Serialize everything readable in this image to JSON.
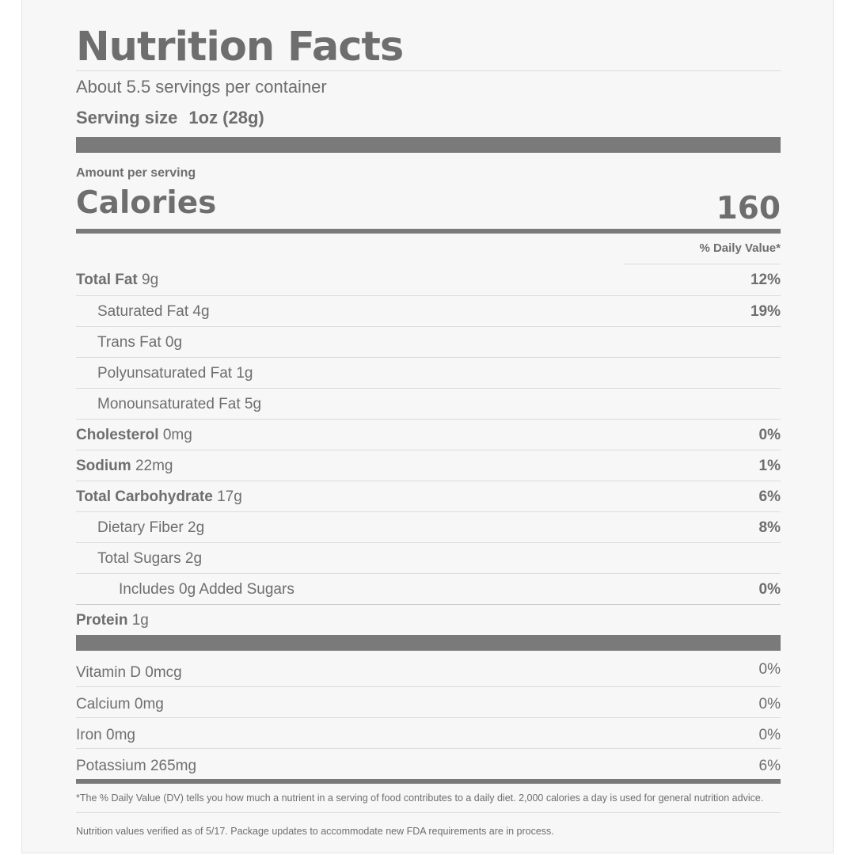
{
  "label": {
    "title": "Nutrition Facts",
    "servings_per_container": "About 5.5 servings per container",
    "serving_size_label": "Serving size",
    "serving_size_value": "1oz (28g)",
    "amount_per_serving": "Amount per serving",
    "calories_label": "Calories",
    "calories_value": "160",
    "daily_value_header": "% Daily Value*"
  },
  "nutrients": [
    {
      "name": "Total Fat",
      "amount": "9g",
      "dv": "12%"
    },
    {
      "name": "Saturated Fat",
      "amount": "4g",
      "dv": "19%"
    },
    {
      "name": "Trans Fat",
      "amount": "0g",
      "dv": ""
    },
    {
      "name": "Polyunsaturated Fat",
      "amount": "1g",
      "dv": ""
    },
    {
      "name": "Monounsaturated Fat",
      "amount": "5g",
      "dv": ""
    },
    {
      "name": "Cholesterol",
      "amount": "0mg",
      "dv": "0%"
    },
    {
      "name": "Sodium",
      "amount": "22mg",
      "dv": "1%"
    },
    {
      "name": "Total Carbohydrate",
      "amount": "17g",
      "dv": "6%"
    },
    {
      "name": "Dietary Fiber",
      "amount": "2g",
      "dv": "8%"
    },
    {
      "name": "Total Sugars",
      "amount": "2g",
      "dv": ""
    },
    {
      "name": "Includes 0g Added Sugars",
      "amount": "",
      "dv": "0%"
    },
    {
      "name": "Protein",
      "amount": "1g",
      "dv": ""
    }
  ],
  "vitamins": [
    {
      "text": "Vitamin D 0mcg",
      "dv": "0%"
    },
    {
      "text": "Calcium 0mg",
      "dv": "0%"
    },
    {
      "text": "Iron 0mg",
      "dv": "0%"
    },
    {
      "text": "Potassium 265mg",
      "dv": "6%"
    }
  ],
  "footnote": "*The % Daily Value (DV) tells you how much a nutrient in a serving of food contributes to a daily diet. 2,000 calories a day is used for general nutrition advice.",
  "verification_note": "Nutrition values verified as of 5/17. Package updates to accommodate new FDA requirements are in process.",
  "colors": {
    "text": "#6e6e6e",
    "bar": "#7a7a7a",
    "background": "#f7f7f7"
  }
}
